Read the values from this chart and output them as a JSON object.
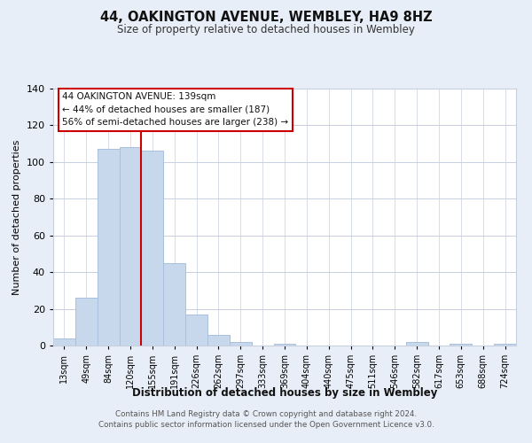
{
  "title": "44, OAKINGTON AVENUE, WEMBLEY, HA9 8HZ",
  "subtitle": "Size of property relative to detached houses in Wembley",
  "xlabel": "Distribution of detached houses by size in Wembley",
  "ylabel": "Number of detached properties",
  "bar_labels": [
    "13sqm",
    "49sqm",
    "84sqm",
    "120sqm",
    "155sqm",
    "191sqm",
    "226sqm",
    "262sqm",
    "297sqm",
    "333sqm",
    "369sqm",
    "404sqm",
    "440sqm",
    "475sqm",
    "511sqm",
    "546sqm",
    "582sqm",
    "617sqm",
    "653sqm",
    "688sqm",
    "724sqm"
  ],
  "bar_values": [
    4,
    26,
    107,
    108,
    106,
    45,
    17,
    6,
    2,
    0,
    1,
    0,
    0,
    0,
    0,
    0,
    2,
    0,
    1,
    0,
    1
  ],
  "bar_color": "#c8d8ec",
  "bar_edge_color": "#a8c0dc",
  "redline_x": 3.5,
  "ylim": [
    0,
    140
  ],
  "yticks": [
    0,
    20,
    40,
    60,
    80,
    100,
    120,
    140
  ],
  "annotation_title": "44 OAKINGTON AVENUE: 139sqm",
  "annotation_line1": "← 44% of detached houses are smaller (187)",
  "annotation_line2": "56% of semi-detached houses are larger (238) →",
  "annotation_box_color": "#ffffff",
  "annotation_box_edge": "#cc0000",
  "footer_line1": "Contains HM Land Registry data © Crown copyright and database right 2024.",
  "footer_line2": "Contains public sector information licensed under the Open Government Licence v3.0.",
  "background_color": "#e8eef7",
  "plot_bg_color": "#ffffff",
  "grid_color": "#c8d0e0"
}
